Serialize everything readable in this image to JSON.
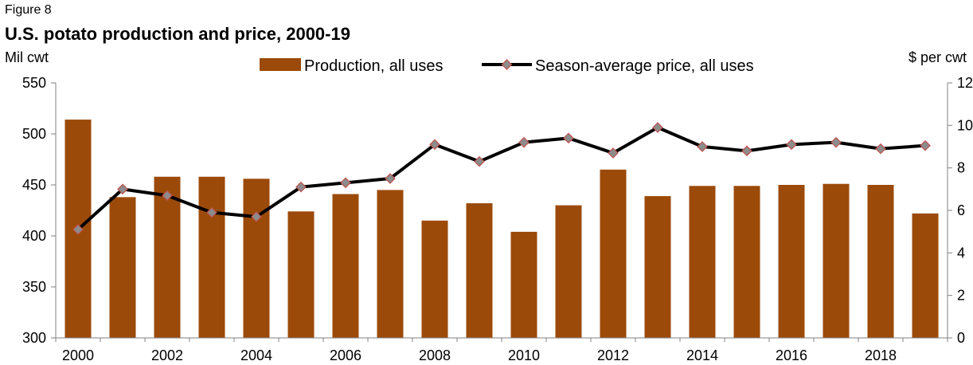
{
  "figure_label": "Figure 8",
  "chart_data": {
    "type": "bar",
    "title": "U.S. potato production and price, 2000-19",
    "ylabel_left": "Mil cwt",
    "ylabel_right": "$ per cwt",
    "x": [
      2000,
      2001,
      2002,
      2003,
      2004,
      2005,
      2006,
      2007,
      2008,
      2009,
      2010,
      2011,
      2012,
      2013,
      2014,
      2015,
      2016,
      2017,
      2018,
      2019
    ],
    "x_tick_labels": [
      "2000",
      "2002",
      "2004",
      "2006",
      "2008",
      "2010",
      "2012",
      "2014",
      "2016",
      "2018"
    ],
    "ylim_left": [
      300,
      550
    ],
    "y_ticks_left": [
      300,
      350,
      400,
      450,
      500,
      550
    ],
    "ylim_right": [
      0,
      12
    ],
    "y_ticks_right": [
      0,
      2,
      4,
      6,
      8,
      10,
      12
    ],
    "grid": false,
    "legend_position": "top",
    "series": [
      {
        "name": "Production, all uses",
        "type": "bar",
        "axis": "left",
        "color": "#9C4A09",
        "values": [
          514,
          438,
          458,
          458,
          456,
          424,
          441,
          445,
          415,
          432,
          404,
          430,
          465,
          439,
          449,
          449,
          450,
          451,
          450,
          422
        ]
      },
      {
        "name": "Season-average price, all uses",
        "type": "line",
        "axis": "right",
        "color": "#000000",
        "marker_color": "#8C8C8C",
        "marker_edge": "#C0504D",
        "values": [
          5.1,
          7.0,
          6.7,
          5.9,
          5.7,
          7.1,
          7.3,
          7.5,
          9.1,
          8.3,
          9.2,
          9.4,
          8.7,
          9.9,
          9.0,
          8.8,
          9.1,
          9.2,
          8.9,
          9.05
        ]
      }
    ]
  }
}
